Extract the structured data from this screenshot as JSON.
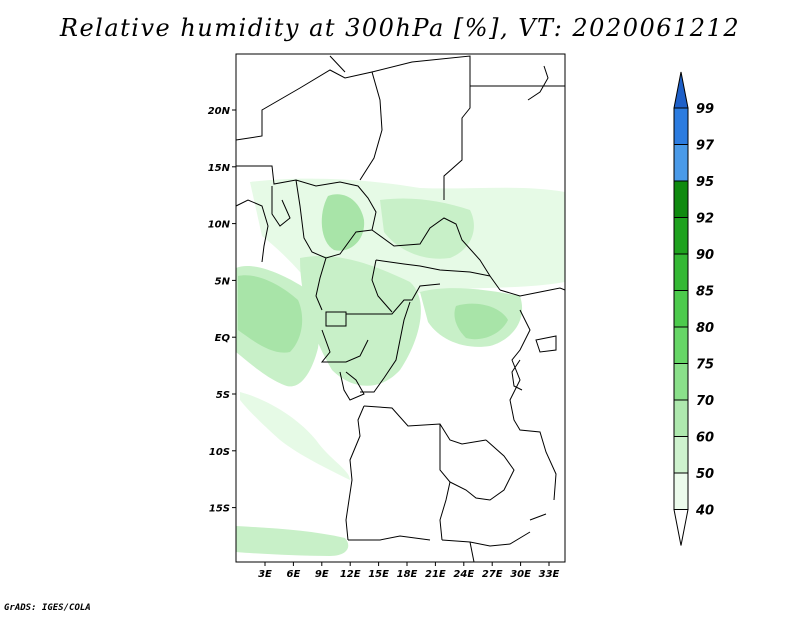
{
  "title": "Relative humidity at 300hPa [%], VT: 2020061212",
  "footer": "GrADS: IGES/COLA",
  "map": {
    "lon_labels": [
      "3E",
      "6E",
      "9E",
      "12E",
      "15E",
      "18E",
      "21E",
      "24E",
      "27E",
      "30E",
      "33E"
    ],
    "lat_labels": [
      "20N",
      "15N",
      "10N",
      "5N",
      "EQ",
      "5S",
      "10S",
      "15S"
    ],
    "humidity_fill_colors": [
      "#e6fae6",
      "#c8f0c8",
      "#a8e4a8"
    ]
  },
  "colorbar": {
    "levels": [
      "99",
      "97",
      "95",
      "92",
      "90",
      "85",
      "80",
      "75",
      "70",
      "60",
      "50",
      "40"
    ],
    "colors": [
      "#1e60c8",
      "#2c7ce0",
      "#4a9ae8",
      "#0f8a0f",
      "#1ea21e",
      "#34b834",
      "#4cca4c",
      "#66d666",
      "#8ae08a",
      "#aee8ae",
      "#cef2ce",
      "#ecfbec",
      "#ffffff"
    ]
  }
}
